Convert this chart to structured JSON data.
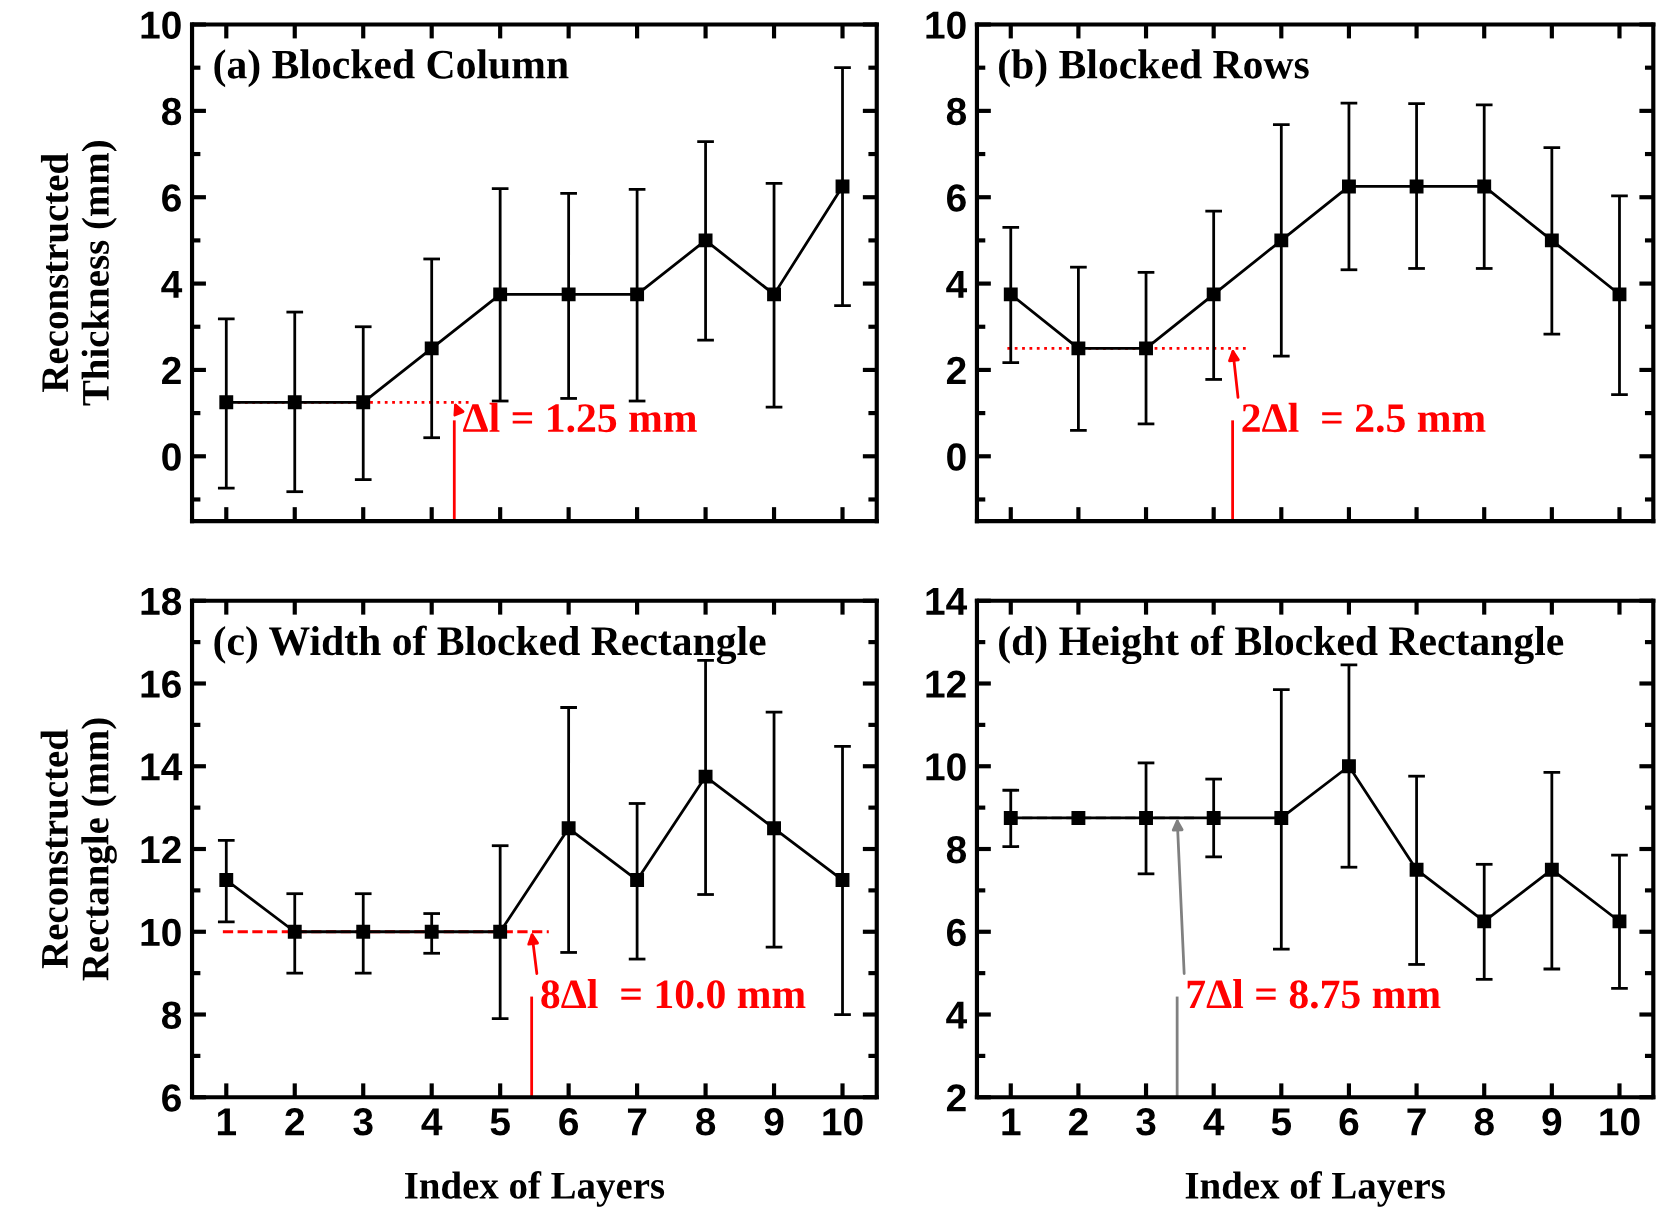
{
  "chart_data": [
    {
      "type": "line",
      "title": "(a) Blocked Column",
      "ylabel": "Reconstructed\nThickness (mm)",
      "x": [
        1,
        2,
        3,
        4,
        5,
        6,
        7,
        8,
        9,
        10
      ],
      "xlim": [
        0.5,
        10.5
      ],
      "xticks": [
        1,
        2,
        3,
        4,
        5,
        6,
        7,
        8,
        9,
        10
      ],
      "ylim": [
        -1.5,
        10
      ],
      "yticks": [
        0,
        2,
        4,
        6,
        8,
        10
      ],
      "tick_labels": "y",
      "marker": "square",
      "line_style": "solid",
      "series": [
        {
          "color": "#000000",
          "values": [
            1.25,
            1.25,
            1.25,
            2.5,
            3.75,
            3.75,
            3.75,
            5.0,
            3.75,
            6.25
          ],
          "errors": [
            [
              -0.74,
              3.18
            ],
            [
              -0.82,
              3.34
            ],
            [
              -0.54,
              3.0
            ],
            [
              0.43,
              4.57
            ],
            [
              1.28,
              6.2
            ],
            [
              1.34,
              6.09
            ],
            [
              1.28,
              6.18
            ],
            [
              2.69,
              7.29
            ],
            [
              1.14,
              6.32
            ],
            [
              3.49,
              9.0
            ]
          ]
        }
      ],
      "ref_lines": [
        {
          "axis": "y",
          "value": 1.25,
          "color": "#ff0000",
          "line_style": "dotted"
        }
      ],
      "annotations": [
        {
          "text": "Δl = 1.25 mm",
          "x": 4.33,
          "y": 1.25
        }
      ]
    },
    {
      "type": "line",
      "title": "(b) Blocked Rows",
      "x": [
        1,
        2,
        3,
        4,
        5,
        6,
        7,
        8,
        9,
        10
      ],
      "xlim": [
        0.5,
        10.5
      ],
      "xticks": [
        1,
        2,
        3,
        4,
        5,
        6,
        7,
        8,
        9,
        10
      ],
      "ylim": [
        -1.5,
        10
      ],
      "yticks": [
        0,
        2,
        4,
        6,
        8,
        10
      ],
      "tick_labels": "y",
      "marker": "square",
      "line_style": "solid",
      "series": [
        {
          "color": "#000000",
          "values": [
            3.75,
            2.5,
            2.5,
            3.75,
            5.0,
            6.25,
            6.25,
            6.25,
            5.0,
            3.75
          ],
          "errors": [
            [
              2.17,
              5.3
            ],
            [
              0.6,
              4.38
            ],
            [
              0.75,
              4.26
            ],
            [
              1.78,
              5.68
            ],
            [
              2.32,
              7.68
            ],
            [
              4.32,
              8.18
            ],
            [
              4.35,
              8.17
            ],
            [
              4.35,
              8.14
            ],
            [
              2.83,
              7.15
            ],
            [
              1.43,
              6.03
            ]
          ]
        }
      ],
      "ref_lines": [
        {
          "axis": "y",
          "value": 2.5,
          "color": "#ff0000",
          "line_style": "dotted"
        }
      ],
      "annotations": [
        {
          "text": "2Δl  = 2.5 mm",
          "x": 4.28,
          "y": 2.5
        }
      ]
    },
    {
      "type": "line",
      "title": "(c) Width of Blocked Rectangle",
      "xlabel": "Index of Layers",
      "ylabel": "Reconstructed\nRectangle (mm)",
      "x": [
        1,
        2,
        3,
        4,
        5,
        6,
        7,
        8,
        9,
        10
      ],
      "xlim": [
        0.5,
        10.5
      ],
      "xticks": [
        1,
        2,
        3,
        4,
        5,
        6,
        7,
        8,
        9,
        10
      ],
      "ylim": [
        6,
        18
      ],
      "yticks": [
        6,
        8,
        10,
        12,
        14,
        16,
        18
      ],
      "marker": "square",
      "line_style": "solid",
      "series": [
        {
          "color": "#000000",
          "values": [
            11.25,
            10,
            10,
            10,
            10,
            12.5,
            11.25,
            13.75,
            12.5,
            11.25
          ],
          "errors": [
            [
              10.24,
              12.21
            ],
            [
              9.0,
              10.92
            ],
            [
              9.0,
              10.92
            ],
            [
              9.48,
              10.44
            ],
            [
              7.9,
              12.08
            ],
            [
              9.5,
              15.42
            ],
            [
              9.34,
              13.1
            ],
            [
              10.9,
              16.56
            ],
            [
              9.63,
              15.31
            ],
            [
              8.0,
              14.48
            ]
          ]
        }
      ],
      "ref_lines": [
        {
          "axis": "y",
          "value": 10,
          "color": "#ff0000",
          "line_style": "dashed"
        }
      ],
      "annotations": [
        {
          "text": "8Δl  = 10.0 mm",
          "x": 5.46,
          "y": 10
        }
      ]
    },
    {
      "type": "line",
      "title": "(d) Height of Blocked Rectangle",
      "xlabel": "Index of Layers",
      "x": [
        1,
        2,
        3,
        4,
        5,
        6,
        7,
        8,
        9,
        10
      ],
      "xlim": [
        0.5,
        10.5
      ],
      "xticks": [
        1,
        2,
        3,
        4,
        5,
        6,
        7,
        8,
        9,
        10
      ],
      "ylim": [
        2,
        14
      ],
      "yticks": [
        2,
        4,
        6,
        8,
        10,
        12,
        14
      ],
      "marker": "square",
      "line_style": "solid",
      "series": [
        {
          "color": "#000000",
          "values": [
            8.75,
            8.75,
            8.75,
            8.75,
            8.75,
            10,
            7.5,
            6.25,
            7.5,
            6.25
          ],
          "errors": [
            [
              8.06,
              9.42
            ],
            null,
            [
              7.4,
              10.08
            ],
            [
              7.81,
              9.69
            ],
            [
              5.58,
              11.85
            ],
            [
              7.56,
              12.45
            ],
            [
              5.21,
              9.76
            ],
            [
              4.85,
              7.63
            ],
            [
              5.1,
              9.85
            ],
            [
              4.63,
              7.85
            ]
          ]
        }
      ],
      "ref_lines": [
        {
          "axis": "y",
          "value": 8.75,
          "color": "#808080",
          "line_style": "dashed"
        }
      ],
      "annotations": [
        {
          "text": "7Δl = 8.75 mm",
          "x": 3.46,
          "y": 8.75
        }
      ]
    }
  ]
}
